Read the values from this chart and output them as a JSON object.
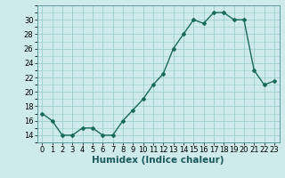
{
  "x": [
    0,
    1,
    2,
    3,
    4,
    5,
    6,
    7,
    8,
    9,
    10,
    11,
    12,
    13,
    14,
    15,
    16,
    17,
    18,
    19,
    20,
    21,
    22,
    23
  ],
  "y": [
    17,
    16,
    14,
    14,
    15,
    15,
    14,
    14,
    16,
    17.5,
    19,
    21,
    22.5,
    26,
    28,
    30,
    29.5,
    31,
    31,
    30,
    30,
    23,
    21,
    21.5
  ],
  "line_color": "#1a6b5a",
  "marker": "D",
  "marker_size": 2.0,
  "linewidth": 1.0,
  "xlabel": "Humidex (Indice chaleur)",
  "xlim": [
    -0.5,
    23.5
  ],
  "ylim": [
    13,
    32
  ],
  "yticks": [
    14,
    16,
    18,
    20,
    22,
    24,
    26,
    28,
    30
  ],
  "xtick_labels": [
    "0",
    "1",
    "2",
    "3",
    "4",
    "5",
    "6",
    "7",
    "8",
    "9",
    "10",
    "11",
    "12",
    "13",
    "14",
    "15",
    "16",
    "17",
    "18",
    "19",
    "20",
    "21",
    "22",
    "23"
  ],
  "bg_color": "#ceeaea",
  "grid_color": "#9ecece",
  "tick_fontsize": 6.0,
  "xlabel_fontsize": 7.5
}
